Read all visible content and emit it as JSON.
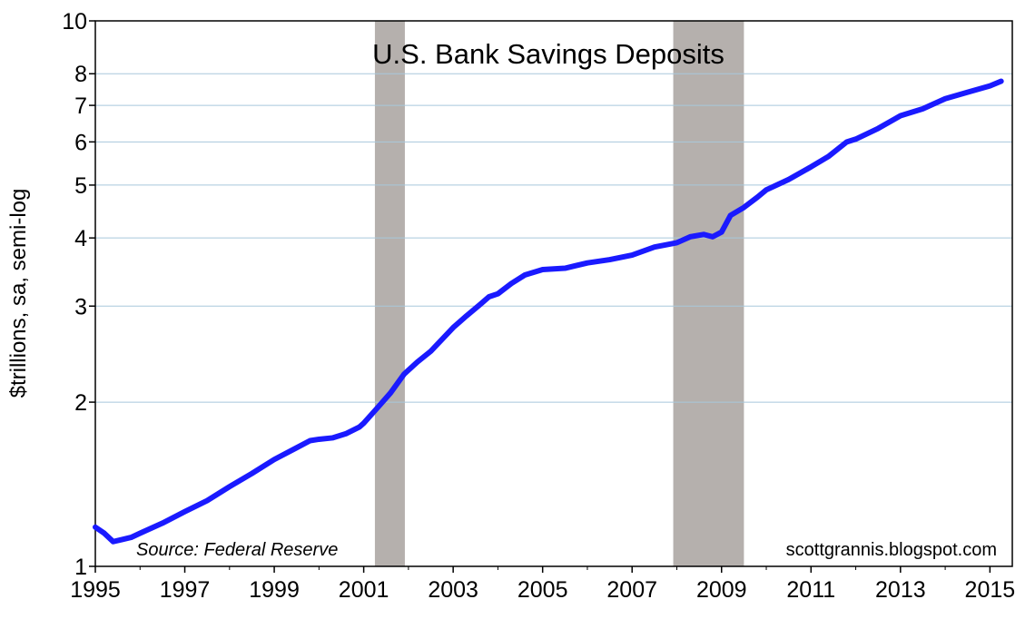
{
  "chart_data": {
    "type": "line",
    "title": "U.S. Bank Savings Deposits",
    "ylabel": "$trillions, sa, semi-log",
    "xlabel": "",
    "y_scale": "log",
    "ylim": [
      1,
      10
    ],
    "xlim": [
      1995,
      2015.5
    ],
    "grid": "horizontal",
    "x_ticks": [
      1995,
      1997,
      1999,
      2001,
      2003,
      2005,
      2007,
      2009,
      2011,
      2013,
      2015
    ],
    "x_tick_labels": [
      "1995",
      "1997",
      "1999",
      "2001",
      "2003",
      "2005",
      "2007",
      "2009",
      "2011",
      "2013",
      "2015"
    ],
    "y_ticks": [
      1,
      2,
      3,
      4,
      5,
      6,
      7,
      8,
      10
    ],
    "y_tick_labels": [
      "1",
      "2",
      "3",
      "4",
      "5",
      "6",
      "7",
      "8",
      "10"
    ],
    "recessions": [
      {
        "start": 2001.25,
        "end": 2001.92
      },
      {
        "start": 2007.92,
        "end": 2009.5
      }
    ],
    "source_note": "Source: Federal Reserve",
    "credit_note": "scottgrannis.blogspot.com",
    "colors": {
      "line": "#1a1aff",
      "recession": "#b5b0ad",
      "grid": "#a8c8dc"
    },
    "series": [
      {
        "x": [
          1995.0,
          1995.2,
          1995.4,
          1995.6,
          1995.8,
          1996.0,
          1996.5,
          1997.0,
          1997.5,
          1998.0,
          1998.5,
          1999.0,
          1999.5,
          1999.8,
          2000.0,
          2000.3,
          2000.6,
          2000.9,
          2001.0,
          2001.3,
          2001.6,
          2001.9,
          2002.2,
          2002.5,
          2003.0,
          2003.3,
          2003.6,
          2003.8,
          2004.0,
          2004.3,
          2004.6,
          2005.0,
          2005.5,
          2006.0,
          2006.5,
          2007.0,
          2007.5,
          2008.0,
          2008.3,
          2008.6,
          2008.8,
          2009.0,
          2009.2,
          2009.5,
          2009.8,
          2010.0,
          2010.5,
          2011.0,
          2011.4,
          2011.8,
          2012.0,
          2012.5,
          2013.0,
          2013.5,
          2014.0,
          2014.5,
          2015.0,
          2015.25
        ],
        "values": [
          1.18,
          1.15,
          1.11,
          1.12,
          1.13,
          1.15,
          1.2,
          1.26,
          1.32,
          1.4,
          1.48,
          1.57,
          1.65,
          1.7,
          1.71,
          1.72,
          1.75,
          1.8,
          1.83,
          1.95,
          2.08,
          2.25,
          2.37,
          2.48,
          2.74,
          2.88,
          3.02,
          3.12,
          3.16,
          3.3,
          3.42,
          3.5,
          3.52,
          3.6,
          3.65,
          3.72,
          3.85,
          3.92,
          4.02,
          4.06,
          4.02,
          4.1,
          4.4,
          4.55,
          4.75,
          4.9,
          5.12,
          5.4,
          5.65,
          6.0,
          6.07,
          6.35,
          6.7,
          6.9,
          7.2,
          7.4,
          7.6,
          7.75
        ]
      }
    ]
  }
}
